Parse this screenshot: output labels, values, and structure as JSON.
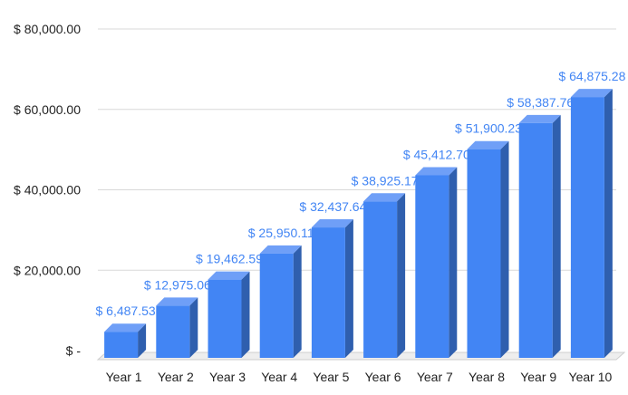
{
  "chart_data": {
    "type": "bar",
    "title": "",
    "xlabel": "",
    "ylabel": "",
    "categories": [
      "Year 1",
      "Year 2",
      "Year 3",
      "Year 4",
      "Year 5",
      "Year 6",
      "Year 7",
      "Year 8",
      "Year 9",
      "Year 10"
    ],
    "values": [
      6487.53,
      12975.06,
      19462.59,
      25950.11,
      32437.64,
      38925.17,
      45412.7,
      51900.23,
      58387.76,
      64875.28
    ],
    "data_labels": [
      "$ 6,487.53",
      "$ 12,975.06",
      "$ 19,462.59",
      "$ 25,950.11",
      "$ 32,437.64",
      "$ 38,925.17",
      "$ 45,412.70",
      "$ 51,900.23",
      "$ 58,387.76",
      "$ 64,875.28"
    ],
    "ylim": [
      0,
      80000
    ],
    "yticks": [
      0,
      20000,
      40000,
      60000,
      80000
    ],
    "ytick_labels": [
      "$ -",
      "$ 20,000.00",
      "$ 40,000.00",
      "$ 60,000.00",
      "$ 80,000.00"
    ],
    "grid": true,
    "legend": "none",
    "style": "3d-column",
    "colors": {
      "bar_front": "#4285f4",
      "bar_side": "#2f5fae",
      "bar_top": "#6f9ff7",
      "data_label": "#4285f4",
      "gridline": "#d9d9d9",
      "floor": "#cfcfcf"
    }
  }
}
